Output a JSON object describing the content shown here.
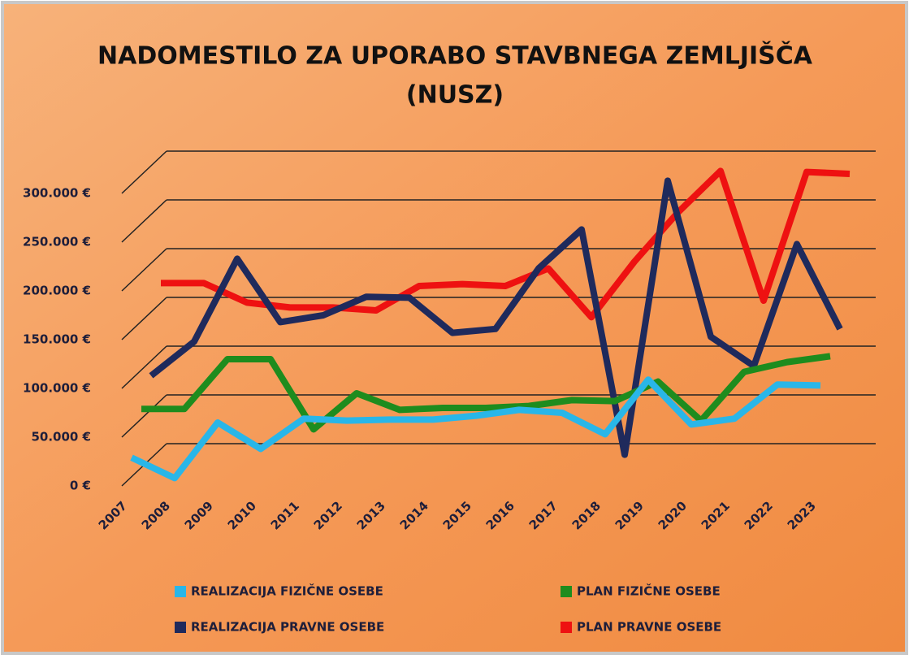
{
  "chart_data": {
    "type": "line",
    "title": "NADOMESTILO ZA UPORABO STAVBNEGA ZEMLJIŠČA",
    "subtitle": "(NUSZ)",
    "categories": [
      "2007",
      "2008",
      "2009",
      "2010",
      "2011",
      "2012",
      "2013",
      "2014",
      "2015",
      "2016",
      "2017",
      "2018",
      "2019",
      "2020",
      "2021",
      "2022",
      "2023"
    ],
    "series": [
      {
        "name": "REALIZACIJA FIZIČNE OSEBE",
        "color": "#29b6e8",
        "values": [
          29000,
          8000,
          65000,
          38000,
          69000,
          67000,
          68000,
          68000,
          72000,
          78000,
          75000,
          53000,
          109000,
          63000,
          69000,
          104000,
          103000
        ]
      },
      {
        "name": "PLAN FIZIČNE OSEBE",
        "color": "#1e8c1e",
        "values": [
          69000,
          69000,
          120000,
          120000,
          48000,
          85000,
          68000,
          70000,
          70000,
          72000,
          78000,
          77000,
          97000,
          57000,
          107000,
          117000,
          123000
        ]
      },
      {
        "name": "REALIZACIJA PRAVNE OSEBE",
        "color": "#1f2a5c",
        "values": [
          93000,
          128000,
          213000,
          148000,
          155000,
          174000,
          173000,
          137000,
          141000,
          203000,
          243000,
          12000,
          293000,
          133000,
          103000,
          228000,
          141000
        ]
      },
      {
        "name": "PLAN PRAVNE OSEBE",
        "color": "#ee1111",
        "values": [
          178000,
          178000,
          158000,
          153000,
          153000,
          150000,
          175000,
          177000,
          175000,
          193000,
          143000,
          200000,
          250000,
          293000,
          160000,
          292000,
          290000
        ]
      }
    ],
    "ylim": [
      0,
      300000
    ],
    "yticks": [
      {
        "value": 0,
        "label": "0 €"
      },
      {
        "value": 50000,
        "label": "50.000 €"
      },
      {
        "value": 100000,
        "label": "100.000 €"
      },
      {
        "value": 150000,
        "label": "150.000 €"
      },
      {
        "value": 200000,
        "label": "200.000 €"
      },
      {
        "value": 250000,
        "label": "250.000 €"
      },
      {
        "value": 300000,
        "label": "300.000 €"
      }
    ],
    "grid": true,
    "legend": "bottom"
  }
}
